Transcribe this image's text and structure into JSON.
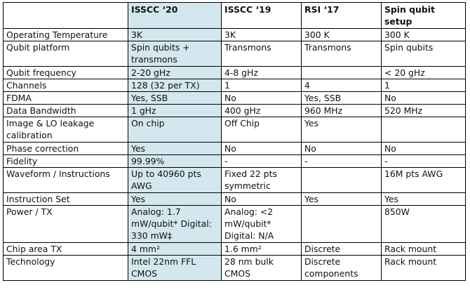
{
  "columns": [
    "",
    "ISSCC ‘20",
    "ISSCC ‘19",
    "RSI ‘17",
    "Spin qubit setup"
  ],
  "highlight_color": "#d3e7ee",
  "rows": [
    {
      "label": "Operating Temperature",
      "cells": [
        "3K",
        "3K",
        "300 K",
        "300 K"
      ]
    },
    {
      "label": "Qubit platform",
      "cells": [
        "Spin qubits + transmons",
        "Transmons",
        "Transmons",
        "Spin qubits"
      ]
    },
    {
      "label": "Qubit frequency",
      "cells": [
        "2-20 gHz",
        "4-8 gHz",
        "",
        "< 20 gHz"
      ]
    },
    {
      "label": "Channels",
      "cells": [
        "128 (32 per TX)",
        "1",
        "4",
        "1"
      ]
    },
    {
      "label": "FDMA",
      "cells": [
        "Yes, SSB",
        "No",
        "Yes, SSB",
        "No"
      ]
    },
    {
      "label": "Data Bandwidth",
      "cells": [
        "1 gHz",
        "400 gHz",
        "960 MHz",
        "520 MHz"
      ]
    },
    {
      "label": "Image & LO leakage calibration",
      "cells": [
        "On chip",
        "Off Chip",
        "Yes",
        ""
      ]
    },
    {
      "label": "Phase correction",
      "cells": [
        "Yes",
        "No",
        "No",
        "No"
      ]
    },
    {
      "label": "Fidelity",
      "cells": [
        "99.99%",
        "-",
        "-",
        "-"
      ]
    },
    {
      "label": "Waveform / Instructions",
      "cells": [
        "Up to 40960 pts AWG",
        "Fixed 22 pts symmetric",
        "",
        "16M pts AWG"
      ]
    },
    {
      "label": "Instruction Set",
      "cells": [
        "Yes",
        "No",
        "Yes",
        "Yes"
      ]
    },
    {
      "label": "Power / TX",
      "cells": [
        "Analog: 1.7 mW/qubit* Digital: 330 mW‡",
        "Analog: <2 mW/qubit* Digital: N/A",
        "",
        "850W"
      ]
    },
    {
      "label": "Chip area TX",
      "cells": [
        "4 mm²",
        "1.6 mm²",
        "Discrete",
        "Rack mount"
      ]
    },
    {
      "label": "Technology",
      "cells": [
        "Intel 22nm FFL CMOS",
        "28 nm bulk CMOS",
        "Discrete components",
        "Rack mount"
      ]
    }
  ]
}
